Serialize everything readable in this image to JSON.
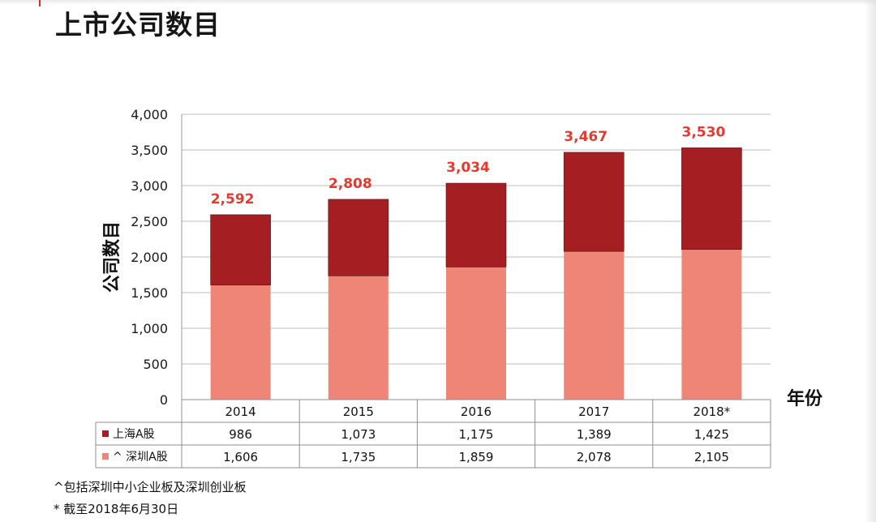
{
  "page": {
    "title": "上市公司数目"
  },
  "chart_data": {
    "type": "bar",
    "stacked": true,
    "categories": [
      "2014",
      "2015",
      "2016",
      "2017",
      "2018*"
    ],
    "series": [
      {
        "name": "^ 深圳A股",
        "values": [
          1606,
          1735,
          1859,
          2078,
          2105
        ],
        "display": [
          "1,606",
          "1,735",
          "1,859",
          "2,078",
          "2,105"
        ],
        "color": "#ee8577"
      },
      {
        "name": "上海A股",
        "values": [
          986,
          1073,
          1175,
          1389,
          1425
        ],
        "display": [
          "986",
          "1,073",
          "1,175",
          "1,389",
          "1,425"
        ],
        "color": "#a51e22"
      }
    ],
    "totals": [
      "2,592",
      "2,808",
      "3,034",
      "3,467",
      "3,530"
    ],
    "ylabel": "公司数目",
    "xlabel": "年份",
    "ylim": [
      0,
      4000
    ],
    "yticks": [
      0,
      500,
      1000,
      1500,
      2000,
      2500,
      3000,
      3500,
      4000
    ],
    "ytick_labels": [
      "0",
      "500",
      "1,000",
      "1,500",
      "2,000",
      "2,500",
      "3,000",
      "3,500",
      "4,000"
    ],
    "grid": true,
    "total_label_color": "#e03c31",
    "data_table": true
  },
  "footnotes": [
    "^包括深圳中小企业板及深圳创业板",
    "* 截至2018年6月30日"
  ]
}
